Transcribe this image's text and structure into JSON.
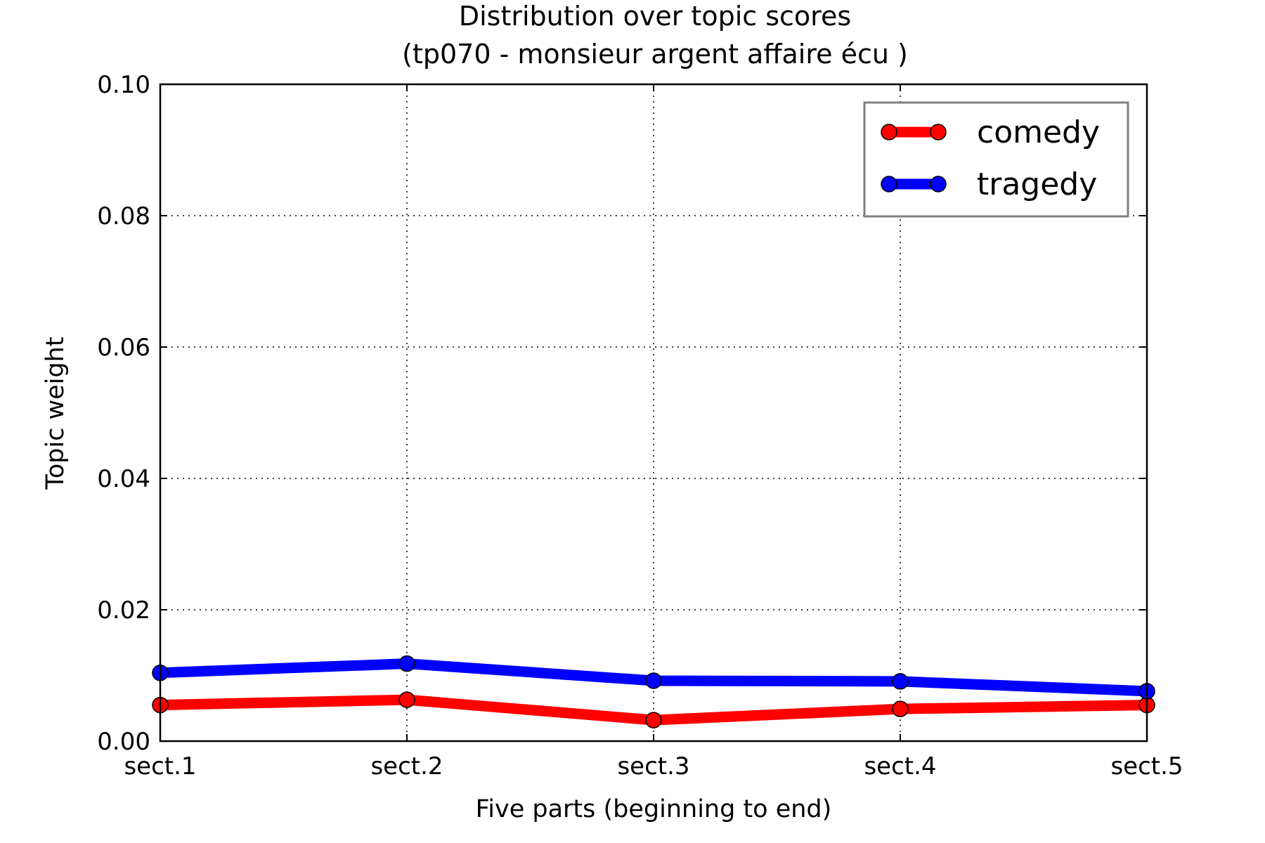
{
  "chart_data": {
    "type": "line",
    "title": "Distribution over topic scores",
    "subtitle": "(tp070 - monsieur argent affaire écu )",
    "xlabel": "Five parts (beginning to end)",
    "ylabel": "Topic weight",
    "categories": [
      "sect.1",
      "sect.2",
      "sect.3",
      "sect.4",
      "sect.5"
    ],
    "ylim": [
      0,
      0.1
    ],
    "yticks": [
      0.0,
      0.02,
      0.04,
      0.06,
      0.08,
      0.1
    ],
    "ytick_labels": [
      "0.00",
      "0.02",
      "0.04",
      "0.06",
      "0.08",
      "0.10"
    ],
    "grid": true,
    "legend_position": "top-right",
    "series": [
      {
        "name": "comedy",
        "color": "#ff0000",
        "values": [
          0.0055,
          0.0063,
          0.0032,
          0.0049,
          0.0055
        ]
      },
      {
        "name": "tragedy",
        "color": "#0000ff",
        "values": [
          0.0104,
          0.0118,
          0.0092,
          0.0091,
          0.0076
        ]
      }
    ]
  }
}
